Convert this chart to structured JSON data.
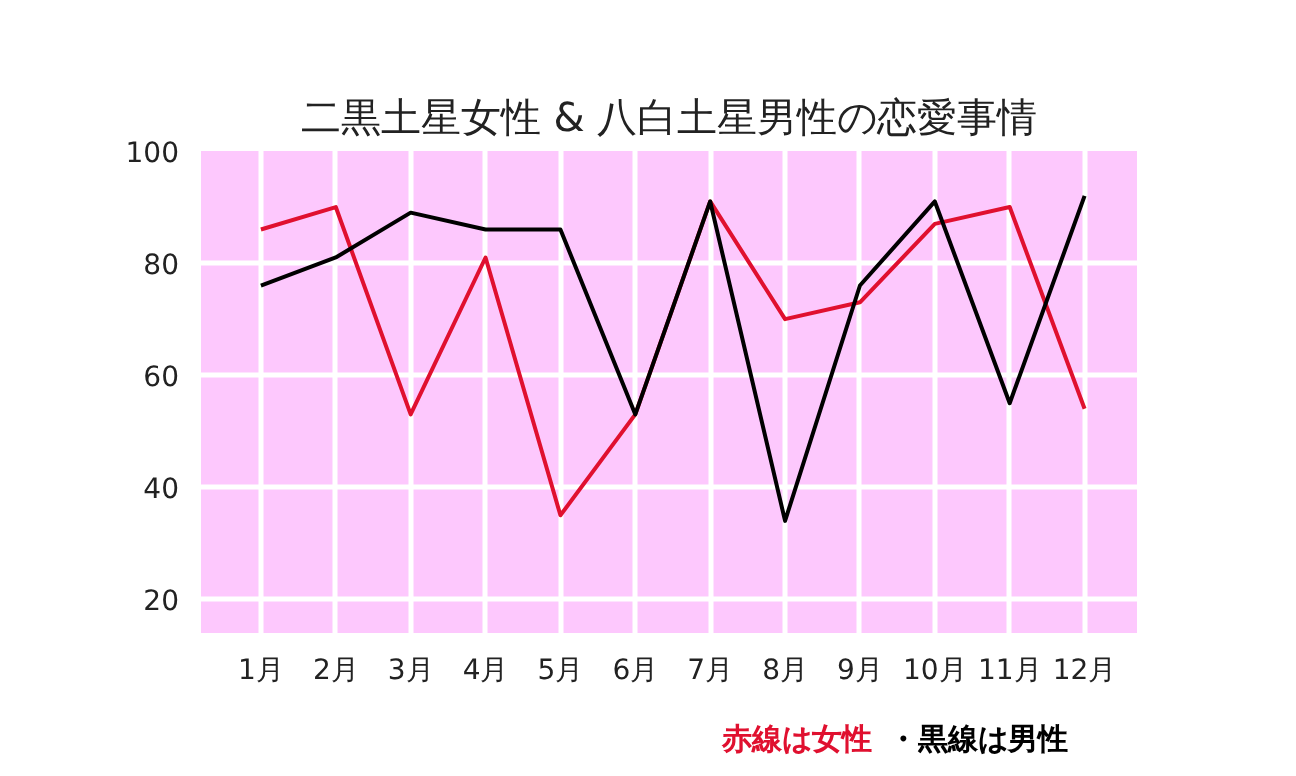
{
  "chart_data": {
    "type": "line",
    "title": "二黒土星女性 & 八白土星男性の恋愛事情",
    "categories": [
      "1月",
      "2月",
      "3月",
      "4月",
      "5月",
      "6月",
      "7月",
      "8月",
      "9月",
      "10月",
      "11月",
      "12月"
    ],
    "series": [
      {
        "color": "#e0102f",
        "values": [
          86,
          90,
          53,
          81,
          35,
          53,
          91,
          70,
          73,
          87,
          90,
          54
        ]
      },
      {
        "color": "#000000",
        "values": [
          76,
          81,
          89,
          86,
          86,
          53,
          91,
          34,
          76,
          91,
          55,
          92
        ]
      }
    ],
    "ylim": [
      14,
      100
    ],
    "yticks": [
      20,
      40,
      60,
      80,
      100
    ],
    "grid": true,
    "marker": "none",
    "line_style": "solid",
    "annotations": [
      "赤線は女性",
      "・黒線は男性"
    ]
  }
}
